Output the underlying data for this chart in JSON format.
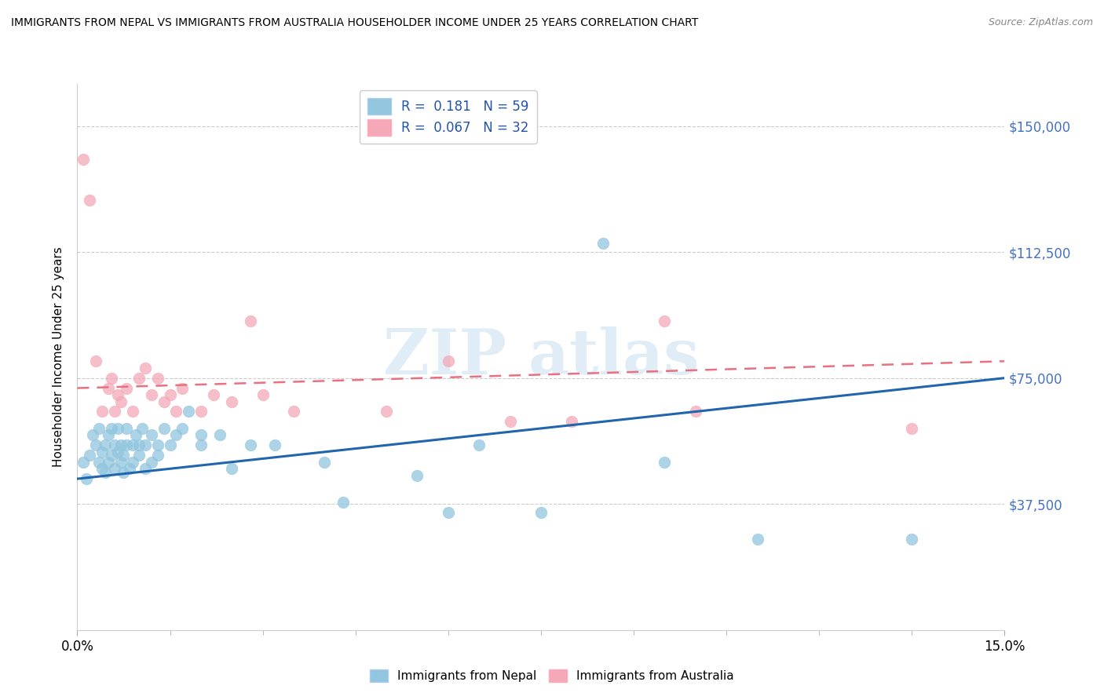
{
  "title": "IMMIGRANTS FROM NEPAL VS IMMIGRANTS FROM AUSTRALIA HOUSEHOLDER INCOME UNDER 25 YEARS CORRELATION CHART",
  "source": "Source: ZipAtlas.com",
  "ylabel": "Householder Income Under 25 years",
  "xlim": [
    0.0,
    15.0
  ],
  "ylim": [
    0,
    162500
  ],
  "yticks": [
    37500,
    75000,
    112500,
    150000
  ],
  "ytick_labels": [
    "$37,500",
    "$75,000",
    "$112,500",
    "$150,000"
  ],
  "nepal_R": "0.181",
  "nepal_N": "59",
  "australia_R": "0.067",
  "australia_N": "32",
  "nepal_color": "#92c5de",
  "australia_color": "#f4a8b8",
  "nepal_line_color": "#2166ac",
  "australia_line_color": "#e87080",
  "nepal_scatter_x": [
    0.1,
    0.15,
    0.2,
    0.25,
    0.3,
    0.35,
    0.35,
    0.4,
    0.4,
    0.45,
    0.45,
    0.5,
    0.5,
    0.55,
    0.55,
    0.6,
    0.6,
    0.65,
    0.65,
    0.7,
    0.7,
    0.75,
    0.75,
    0.8,
    0.8,
    0.85,
    0.9,
    0.9,
    0.95,
    1.0,
    1.0,
    1.05,
    1.1,
    1.1,
    1.2,
    1.2,
    1.3,
    1.3,
    1.4,
    1.5,
    1.6,
    1.7,
    1.8,
    2.0,
    2.0,
    2.3,
    2.5,
    2.8,
    3.2,
    4.0,
    4.3,
    5.5,
    6.0,
    6.5,
    7.5,
    8.5,
    9.5,
    11.0,
    13.5
  ],
  "nepal_scatter_y": [
    50000,
    45000,
    52000,
    58000,
    55000,
    50000,
    60000,
    48000,
    53000,
    47000,
    55000,
    50000,
    58000,
    52000,
    60000,
    48000,
    55000,
    53000,
    60000,
    50000,
    55000,
    47000,
    52000,
    55000,
    60000,
    48000,
    50000,
    55000,
    58000,
    52000,
    55000,
    60000,
    48000,
    55000,
    50000,
    58000,
    52000,
    55000,
    60000,
    55000,
    58000,
    60000,
    65000,
    58000,
    55000,
    58000,
    48000,
    55000,
    55000,
    50000,
    38000,
    46000,
    35000,
    55000,
    35000,
    115000,
    50000,
    27000,
    27000
  ],
  "australia_scatter_x": [
    0.1,
    0.2,
    0.3,
    0.4,
    0.5,
    0.55,
    0.6,
    0.65,
    0.7,
    0.8,
    0.9,
    1.0,
    1.1,
    1.2,
    1.3,
    1.4,
    1.5,
    1.6,
    1.7,
    2.0,
    2.2,
    2.5,
    2.8,
    3.0,
    3.5,
    5.0,
    6.0,
    7.0,
    8.0,
    9.5,
    10.0,
    13.5
  ],
  "australia_scatter_y": [
    140000,
    128000,
    80000,
    65000,
    72000,
    75000,
    65000,
    70000,
    68000,
    72000,
    65000,
    75000,
    78000,
    70000,
    75000,
    68000,
    70000,
    65000,
    72000,
    65000,
    70000,
    68000,
    92000,
    70000,
    65000,
    65000,
    80000,
    62000,
    62000,
    92000,
    65000,
    60000
  ],
  "watermark_text": "ZIP atlas",
  "background_color": "#ffffff",
  "grid_color": "#cccccc",
  "nepal_line_x0": 0.0,
  "nepal_line_y0": 45000,
  "nepal_line_x1": 15.0,
  "nepal_line_y1": 75000,
  "aus_line_x0": 0.0,
  "aus_line_y0": 72000,
  "aus_line_x1": 15.0,
  "aus_line_y1": 80000
}
